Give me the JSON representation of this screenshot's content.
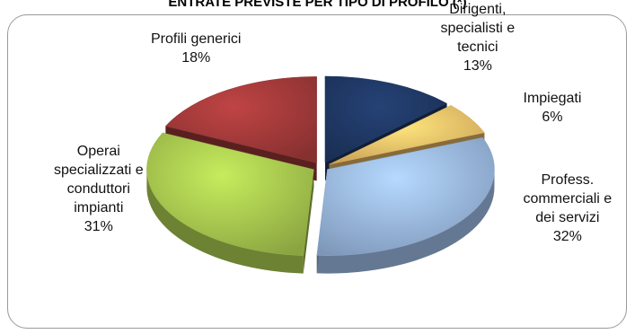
{
  "chart_data": {
    "type": "pie",
    "title": "ENTRATE PREVISTE PER TIPO DI PROFILO (*)",
    "slices": [
      {
        "label_lines": [
          "Dirigenti,",
          "specialisti e",
          "tecnici"
        ],
        "value": 13,
        "value_label": "13%",
        "color": "#1f3864"
      },
      {
        "label_lines": [
          "Impiegati"
        ],
        "value": 6,
        "value_label": "6%",
        "color": "#f5c36a"
      },
      {
        "label_lines": [
          "Profess.",
          "commerciali e",
          "dei servizi"
        ],
        "value": 32,
        "value_label": "32%",
        "color": "#9ab8e2"
      },
      {
        "label_lines": [
          "Operai",
          "specializzati e",
          "conduttori",
          "impianti"
        ],
        "value": 31,
        "value_label": "31%",
        "color": "#a8c84f"
      },
      {
        "label_lines": [
          "Profili generici"
        ],
        "value": 18,
        "value_label": "18%",
        "color": "#a33a3a"
      }
    ],
    "legend": "none",
    "style": "exploded-3d-pie"
  }
}
